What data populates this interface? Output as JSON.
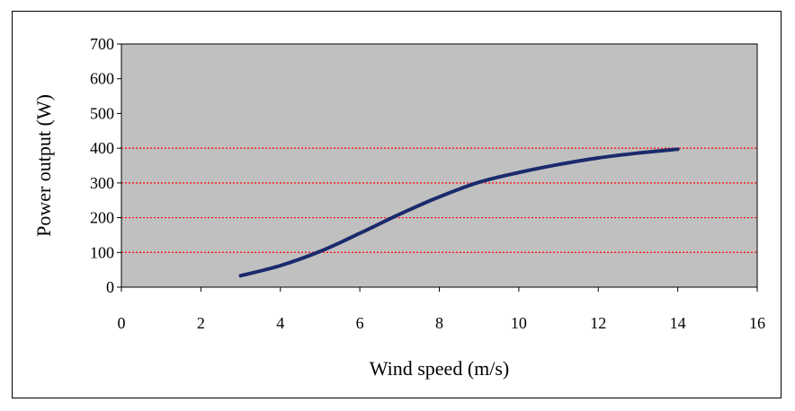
{
  "chart_data": {
    "type": "line",
    "title": "",
    "xlabel": "Wind speed (m/s)",
    "ylabel": "Power output (W)",
    "xlim": [
      0,
      16
    ],
    "ylim": [
      0,
      700
    ],
    "x_ticks": [
      0,
      2,
      4,
      6,
      8,
      10,
      12,
      14,
      16
    ],
    "y_ticks": [
      0,
      100,
      200,
      300,
      400,
      500,
      600,
      700
    ],
    "gridlines_y": [
      100,
      200,
      300,
      400
    ],
    "grid": true,
    "legend": "none",
    "colors": {
      "plot_background": "#c0c0c0",
      "gridline": "#ff0000",
      "series_line": "#1a2a6c"
    },
    "series": [
      {
        "x": [
          3,
          4,
          5,
          6,
          7,
          8,
          9,
          10,
          11,
          12,
          13,
          14
        ],
        "values": [
          33,
          62,
          103,
          155,
          210,
          260,
          302,
          330,
          353,
          372,
          386,
          397
        ]
      }
    ]
  }
}
